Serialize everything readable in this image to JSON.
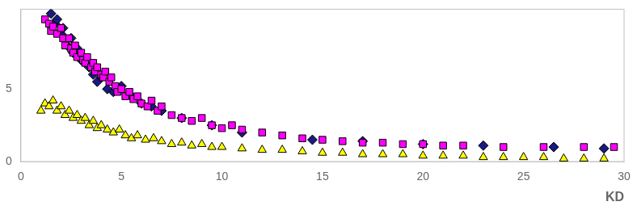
{
  "chart_data": {
    "type": "scatter",
    "xlabel": "KD",
    "xlim": [
      0,
      30
    ],
    "xticks": [
      0,
      5,
      10,
      15,
      20,
      25,
      30
    ],
    "ylim": [
      0,
      10.5
    ],
    "yticks": [
      0,
      5
    ],
    "grid": false,
    "series": [
      {
        "color": "#ff00ff",
        "marker": "square",
        "x": [
          1.2,
          1.4,
          1.5,
          1.6,
          1.8,
          2.0,
          2.1,
          2.2,
          2.4,
          2.5,
          2.6,
          2.7,
          2.8,
          3.0,
          3.1,
          3.2,
          3.3,
          3.5,
          3.6,
          3.7,
          3.8,
          4.0,
          4.1,
          4.2,
          4.4,
          4.5,
          4.7,
          4.8,
          5.0,
          5.2,
          5.4,
          5.6,
          5.8,
          6.0,
          6.3,
          6.5,
          6.8,
          7.0,
          7.5,
          8.0,
          8.5,
          9.0,
          9.5,
          10.0,
          10.5,
          11.0,
          12.0,
          13.0,
          14.0,
          15.0,
          16.0,
          17.0,
          18.0,
          19.0,
          20.0,
          21.0,
          22.0,
          24.0,
          26.0,
          28.0,
          29.5
        ],
        "values": [
          9.8,
          9.5,
          9.0,
          9.3,
          8.8,
          9.2,
          8.5,
          8.0,
          8.5,
          7.8,
          7.5,
          8.0,
          7.2,
          7.5,
          7.0,
          6.8,
          7.2,
          6.5,
          6.8,
          6.2,
          6.5,
          6.0,
          5.8,
          6.2,
          5.5,
          5.8,
          5.2,
          4.8,
          5.0,
          4.5,
          4.8,
          4.3,
          4.5,
          4.0,
          3.8,
          4.2,
          3.5,
          3.8,
          3.2,
          3.0,
          2.8,
          3.0,
          2.5,
          2.3,
          2.5,
          2.2,
          2.0,
          1.8,
          1.6,
          1.5,
          1.4,
          1.3,
          1.3,
          1.2,
          1.2,
          1.1,
          1.1,
          1.0,
          1.0,
          1.0,
          1.0
        ]
      },
      {
        "color": "#1a1a80",
        "marker": "diamond",
        "x": [
          1.5,
          1.7,
          1.8,
          2.0,
          2.1,
          2.3,
          2.5,
          2.6,
          2.8,
          3.0,
          3.2,
          3.4,
          3.6,
          3.8,
          4.0,
          4.3,
          4.6,
          5.0,
          5.5,
          6.0,
          6.5,
          7.0,
          8.0,
          9.5,
          11.0,
          14.5,
          17.0,
          20.0,
          23.0,
          26.5,
          29.0
        ],
        "values": [
          10.2,
          9.5,
          9.8,
          8.8,
          9.2,
          8.0,
          8.5,
          7.5,
          7.8,
          7.0,
          6.8,
          6.5,
          6.0,
          5.5,
          5.8,
          5.0,
          4.8,
          5.2,
          4.5,
          4.0,
          3.8,
          3.5,
          3.0,
          2.5,
          2.0,
          1.5,
          1.4,
          1.2,
          1.1,
          1.0,
          0.9
        ]
      },
      {
        "color": "#ffff00",
        "marker": "triangle",
        "x": [
          1.0,
          1.2,
          1.4,
          1.6,
          1.8,
          2.0,
          2.2,
          2.4,
          2.6,
          2.8,
          3.0,
          3.2,
          3.4,
          3.6,
          3.8,
          4.0,
          4.3,
          4.6,
          4.9,
          5.2,
          5.5,
          5.8,
          6.2,
          6.6,
          7.0,
          7.5,
          8.0,
          8.5,
          9.0,
          9.5,
          10.0,
          11.0,
          12.0,
          13.0,
          14.0,
          15.0,
          16.0,
          17.0,
          18.0,
          19.0,
          20.0,
          21.0,
          22.0,
          23.0,
          24.0,
          25.0,
          26.0,
          27.0,
          28.0,
          29.0
        ],
        "values": [
          3.5,
          4.0,
          3.8,
          4.2,
          3.5,
          3.8,
          3.2,
          3.5,
          3.0,
          3.2,
          2.8,
          3.0,
          2.5,
          2.8,
          2.3,
          2.5,
          2.2,
          2.0,
          2.2,
          1.8,
          1.6,
          1.8,
          1.5,
          1.6,
          1.4,
          1.2,
          1.3,
          1.1,
          1.2,
          1.0,
          1.0,
          0.9,
          0.8,
          0.8,
          0.7,
          0.6,
          0.6,
          0.5,
          0.5,
          0.5,
          0.4,
          0.4,
          0.4,
          0.3,
          0.3,
          0.3,
          0.3,
          0.2,
          0.2,
          0.2
        ]
      }
    ]
  }
}
